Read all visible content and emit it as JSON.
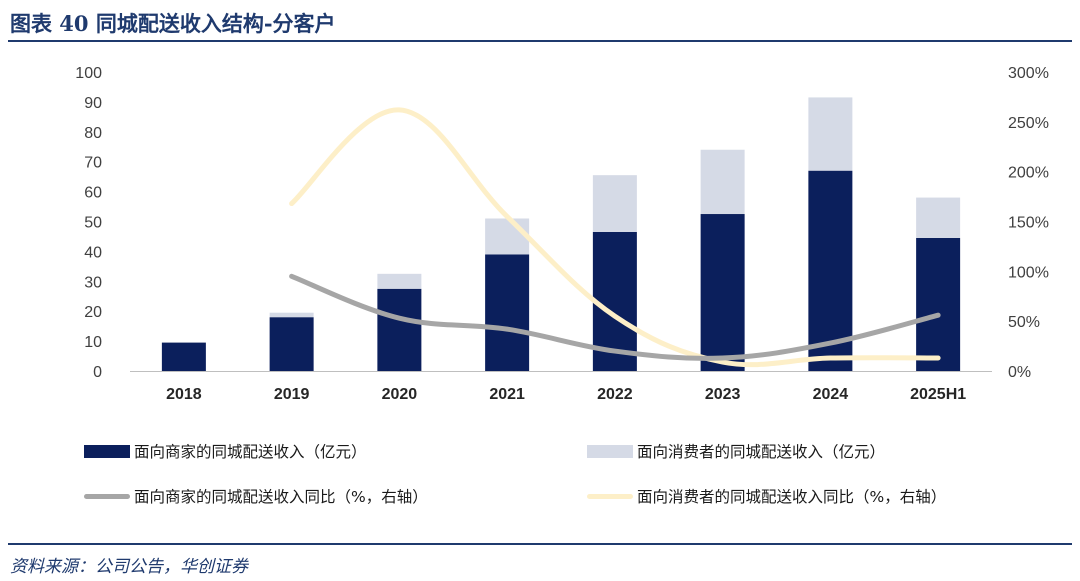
{
  "title": "图表 40  同城配送收入结构-分客户",
  "source": "资料来源：公司公告，华创证券",
  "colors": {
    "merchant_bar": "#0b1f5c",
    "consumer_bar": "#d5dae6",
    "merchant_line": "#a6a6a6",
    "consumer_line": "#fdefc8",
    "rule": "#1f3a6e"
  },
  "chart_data": {
    "type": "bar",
    "stacked": true,
    "categories": [
      "2018",
      "2019",
      "2020",
      "2021",
      "2022",
      "2023",
      "2024",
      "2025H1"
    ],
    "y_left": {
      "min": 0,
      "max": 100,
      "step": 10,
      "ticks": [
        "0",
        "10",
        "20",
        "30",
        "40",
        "50",
        "60",
        "70",
        "80",
        "90",
        "100"
      ]
    },
    "y_right": {
      "min": 0,
      "max": 300,
      "step": 50,
      "ticks": [
        "0%",
        "50%",
        "100%",
        "150%",
        "200%",
        "250%",
        "300%"
      ]
    },
    "series": [
      {
        "name": "面向商家的同城配送收入（亿元）",
        "kind": "bar",
        "axis": "left",
        "values": [
          9.5,
          18,
          27.5,
          39,
          46.5,
          52.5,
          67,
          44.5
        ]
      },
      {
        "name": "面向消费者的同城配送收入（亿元）",
        "kind": "bar",
        "axis": "left",
        "values": [
          0,
          1.5,
          5,
          12,
          19,
          21.5,
          24.5,
          13.5
        ]
      },
      {
        "name": "面向商家的同城配送收入同比（%，右轴）",
        "kind": "line",
        "axis": "right",
        "values": [
          null,
          95,
          53,
          42,
          20,
          13,
          28,
          56
        ]
      },
      {
        "name": "面向消费者的同城配送收入同比（%，右轴）",
        "kind": "line",
        "axis": "right",
        "values": [
          null,
          168,
          262,
          155,
          55,
          9,
          13,
          13
        ]
      }
    ],
    "legend_position": "bottom",
    "grid": false
  }
}
